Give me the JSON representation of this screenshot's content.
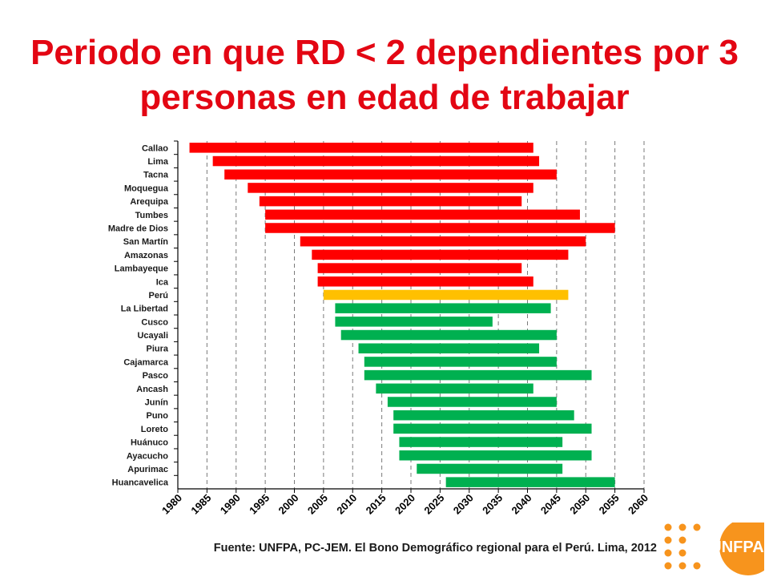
{
  "title": {
    "line1": "Periodo en que RD < 2 dependientes por 3",
    "line2": "personas en edad de trabajar"
  },
  "source_note": "Fuente: UNFPA, PC-JEM. El Bono Demográfico regional para el Perú. Lima, 2012",
  "logo": {
    "text": "UNFPA",
    "icon": "un-emblem-icon",
    "color": "#f7941d"
  },
  "colors": {
    "red": "#ff0000",
    "yellow": "#ffc000",
    "green": "#00b050"
  },
  "chart_data": {
    "type": "bar",
    "orientation": "horizontal",
    "xlim": [
      1980,
      2060
    ],
    "x_ticks": [
      "1980",
      "1985",
      "1990",
      "1995",
      "2000",
      "2005",
      "2010",
      "2015",
      "2020",
      "2025",
      "2030",
      "2035",
      "2040",
      "2045",
      "2050",
      "2055",
      "2060"
    ],
    "grid": "vertical-dashed",
    "categories": [
      "Callao",
      "Lima",
      "Tacna",
      "Moquegua",
      "Arequipa",
      "Tumbes",
      "Madre de Dios",
      "San Martín",
      "Amazonas",
      "Lambayeque",
      "Ica",
      "Perú",
      "La Libertad",
      "Cusco",
      "Ucayali",
      "Piura",
      "Cajamarca",
      "Pasco",
      "Ancash",
      "Junín",
      "Puno",
      "Loreto",
      "Huánuco",
      "Ayacucho",
      "Apurimac",
      "Huancavelica"
    ],
    "ranges": [
      {
        "start": 1982,
        "end": 2041,
        "group": "red"
      },
      {
        "start": 1986,
        "end": 2042,
        "group": "red"
      },
      {
        "start": 1988,
        "end": 2045,
        "group": "red"
      },
      {
        "start": 1992,
        "end": 2041,
        "group": "red"
      },
      {
        "start": 1994,
        "end": 2039,
        "group": "red"
      },
      {
        "start": 1995,
        "end": 2049,
        "group": "red"
      },
      {
        "start": 1995,
        "end": 2055,
        "group": "red"
      },
      {
        "start": 2001,
        "end": 2050,
        "group": "red"
      },
      {
        "start": 2003,
        "end": 2047,
        "group": "red"
      },
      {
        "start": 2004,
        "end": 2039,
        "group": "red"
      },
      {
        "start": 2004,
        "end": 2041,
        "group": "red"
      },
      {
        "start": 2005,
        "end": 2047,
        "group": "yellow"
      },
      {
        "start": 2007,
        "end": 2044,
        "group": "green"
      },
      {
        "start": 2007,
        "end": 2034,
        "group": "green"
      },
      {
        "start": 2008,
        "end": 2045,
        "group": "green"
      },
      {
        "start": 2011,
        "end": 2042,
        "group": "green"
      },
      {
        "start": 2012,
        "end": 2045,
        "group": "green"
      },
      {
        "start": 2012,
        "end": 2051,
        "group": "green"
      },
      {
        "start": 2014,
        "end": 2041,
        "group": "green"
      },
      {
        "start": 2016,
        "end": 2045,
        "group": "green"
      },
      {
        "start": 2017,
        "end": 2048,
        "group": "green"
      },
      {
        "start": 2017,
        "end": 2051,
        "group": "green"
      },
      {
        "start": 2018,
        "end": 2046,
        "group": "green"
      },
      {
        "start": 2018,
        "end": 2051,
        "group": "green"
      },
      {
        "start": 2021,
        "end": 2046,
        "group": "green"
      },
      {
        "start": 2026,
        "end": 2055,
        "group": "green"
      }
    ]
  }
}
